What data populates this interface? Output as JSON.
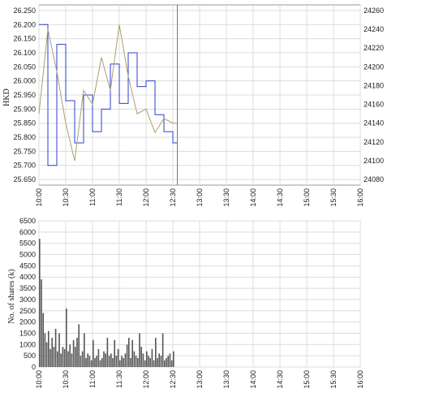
{
  "chart_data": [
    {
      "type": "line",
      "ylabel": "HKD",
      "y2label": "",
      "grid": true,
      "x": [
        "10:00",
        "10:10",
        "10:20",
        "10:30",
        "10:40",
        "10:50",
        "11:00",
        "11:10",
        "11:20",
        "11:30",
        "11:40",
        "11:50",
        "12:00",
        "12:10",
        "12:20",
        "12:30",
        "12:35"
      ],
      "x_ticks": [
        "10:00",
        "10:30",
        "11:00",
        "11:30",
        "12:00",
        "12:30",
        "13:00",
        "13:30",
        "14:00",
        "14:30",
        "15:00",
        "15:30",
        "16:00"
      ],
      "y_ticks": [
        "25.650",
        "25.700",
        "25.750",
        "25.800",
        "25.850",
        "25.900",
        "25.950",
        "26.000",
        "26.050",
        "26.100",
        "26.150",
        "26.200",
        "26.250"
      ],
      "y2_ticks": [
        "24080",
        "24100",
        "24120",
        "24140",
        "24160",
        "24180",
        "24200",
        "24220",
        "24240",
        "24260"
      ],
      "ylim": [
        25.63,
        26.27
      ],
      "y2lim": [
        24074,
        24266
      ],
      "series": [
        {
          "axis": "left",
          "color": "#2a3fd6",
          "values": [
            26.2,
            25.7,
            26.13,
            25.93,
            25.78,
            25.95,
            25.82,
            25.9,
            26.06,
            25.92,
            26.1,
            25.98,
            26.0,
            25.88,
            25.82,
            25.78,
            25.8
          ]
        },
        {
          "axis": "right",
          "color": "#a8a070",
          "values": [
            24150,
            24240,
            24195,
            24140,
            24100,
            24175,
            24160,
            24210,
            24175,
            24245,
            24190,
            24150,
            24155,
            24130,
            24145,
            24140,
            24140
          ]
        }
      ]
    },
    {
      "type": "bar",
      "ylabel": "No. of shares (k)",
      "grid": true,
      "ylim": [
        0,
        6500
      ],
      "y_ticks": [
        "0",
        "500",
        "1000",
        "1500",
        "2000",
        "2500",
        "3000",
        "3500",
        "4000",
        "4500",
        "5000",
        "5500",
        "6000",
        "6500"
      ],
      "x_ticks": [
        "10:00",
        "10:30",
        "11:00",
        "11:30",
        "12:00",
        "12:30",
        "13:00",
        "13:30",
        "14:00",
        "14:30",
        "15:00",
        "15:30",
        "16:00"
      ],
      "x": [
        "10:00",
        "10:02",
        "10:04",
        "10:06",
        "10:08",
        "10:10",
        "10:12",
        "10:14",
        "10:16",
        "10:18",
        "10:20",
        "10:22",
        "10:24",
        "10:26",
        "10:28",
        "10:30",
        "10:32",
        "10:34",
        "10:36",
        "10:38",
        "10:40",
        "10:42",
        "10:44",
        "10:46",
        "10:48",
        "10:50",
        "10:52",
        "10:54",
        "10:56",
        "10:58",
        "11:00",
        "11:02",
        "11:04",
        "11:06",
        "11:08",
        "11:10",
        "11:12",
        "11:14",
        "11:16",
        "11:18",
        "11:20",
        "11:22",
        "11:24",
        "11:26",
        "11:28",
        "11:30",
        "11:32",
        "11:34",
        "11:36",
        "11:38",
        "11:40",
        "11:42",
        "11:44",
        "11:46",
        "11:48",
        "11:50",
        "11:52",
        "11:54",
        "11:56",
        "11:58",
        "12:00",
        "12:02",
        "12:04",
        "12:06",
        "12:08",
        "12:10",
        "12:12",
        "12:14",
        "12:16",
        "12:18",
        "12:20",
        "12:22",
        "12:24",
        "12:26",
        "12:28",
        "12:30"
      ],
      "values": [
        5700,
        3900,
        2400,
        1500,
        1100,
        1600,
        800,
        1300,
        900,
        1700,
        700,
        1500,
        600,
        900,
        800,
        2600,
        700,
        1000,
        600,
        1200,
        900,
        1300,
        1900,
        500,
        700,
        1500,
        400,
        600,
        500,
        300,
        1200,
        400,
        500,
        800,
        300,
        400,
        700,
        600,
        1300,
        500,
        600,
        400,
        1200,
        500,
        800,
        300,
        500,
        400,
        600,
        1000,
        1300,
        400,
        1200,
        700,
        500,
        400,
        1500,
        900,
        600,
        300,
        700,
        500,
        400,
        800,
        300,
        1300,
        400,
        600,
        500,
        1500,
        300,
        400,
        500,
        600,
        300,
        700
      ],
      "color": "#555555"
    }
  ]
}
